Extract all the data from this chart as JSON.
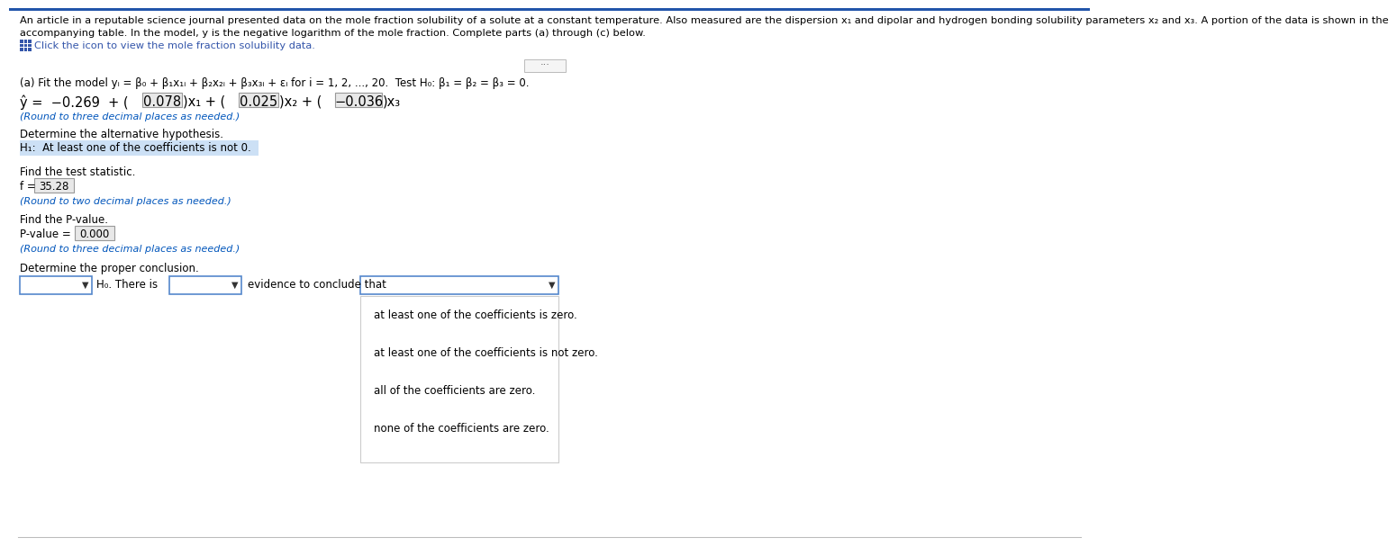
{
  "bg_color": "#ffffff",
  "header_line1": "An article in a reputable science journal presented data on the mole fraction solubility of a solute at a constant temperature. Also measured are the dispersion x₁ and dipolar and hydrogen bonding solubility parameters x₂ and x₃. A portion of the data is shown in the",
  "header_line2": "accompanying table. In the model, y is the negative logarithm of the mole fraction. Complete parts (a) through (c) below.",
  "click_text": "Click the icon to view the mole fraction solubility data.",
  "part_a": "(a) Fit the model yᵢ = β₀ + β₁x₁ᵢ + β₂x₂ᵢ + β₃x₃ᵢ + εᵢ for i = 1, 2, ..., 20.  Test H₀: β₁ = β₂ = β₃ = 0.",
  "eq_prefix": "ŷ =  −0.269  + (",
  "eq_c1": "0.078",
  "eq_mid1": ")x₁ + (",
  "eq_c2": "0.025",
  "eq_mid2": ")x₂ + (",
  "eq_c3": "−0.036",
  "eq_suffix": ")x₃",
  "round_3": "(Round to three decimal places as needed.)",
  "det_alt_hyp": "Determine the alternative hypothesis.",
  "h1_text": "H₁:  At least one of the coefficients is not 0.",
  "find_test_stat": "Find the test statistic.",
  "f_prefix": "f =",
  "f_val": "35.28",
  "round_2": "(Round to two decimal places as needed.)",
  "find_pvalue": "Find the P-value.",
  "pval_prefix": "P-value =",
  "pval_val": "0.000",
  "round_3b": "(Round to three decimal places as needed.)",
  "det_conclusion": "Determine the proper conclusion.",
  "h0_text": "H₀. There is",
  "evidence_text": "evidence to conclude that",
  "dropdown_options": [
    "at least one of the coefficients is zero.",
    "at least one of the coefficients is not zero.",
    "all of the coefficients are zero.",
    "none of the coefficients are zero."
  ],
  "text_color": "#000000",
  "blue_italic": "#0000bb",
  "small_blue": "#0055bb",
  "icon_blue": "#3355aa",
  "highlight_blue": "#cce0f5",
  "box_blue": "#5588cc",
  "box_gray": "#bbbbbb",
  "sep_color": "#bbbbbb",
  "top_border": "#2255aa"
}
